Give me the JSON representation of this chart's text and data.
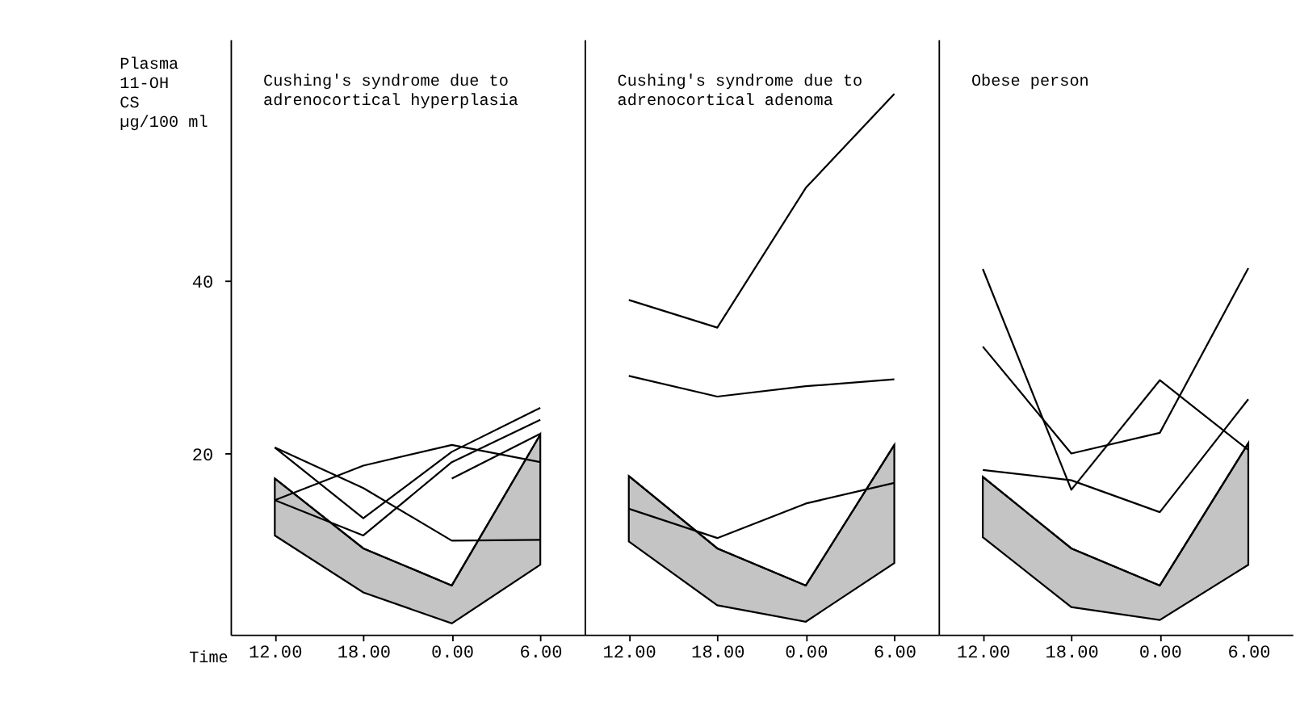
{
  "chart_data": [
    {
      "type": "line",
      "title": "Cushing's syndrome due to\nadrenocortical hyperplasia",
      "xlabel": "Time",
      "ylabel": "Plasma\n11-OH\nCS\nµg/100 ml",
      "categories": [
        "12.00",
        "18.00",
        "0.00",
        "6.00"
      ],
      "ylim": [
        -1,
        68
      ],
      "yticks": [
        20,
        40
      ],
      "grid": false,
      "line_style": "solid",
      "marker": "none",
      "series": [
        {
          "color": "#000000",
          "values": [
            17.1,
            9,
            4.7,
            22.2
          ],
          "lower": [
            10.5,
            3.9,
            0.3,
            7.1
          ],
          "upper": [
            17.1,
            9,
            4.7,
            22.2
          ]
        },
        {
          "color": "#000000",
          "values": [
            20.7,
            16,
            9.9,
            10
          ]
        },
        {
          "color": "#000000",
          "values": [
            20.7,
            12.5,
            20.2,
            25.3
          ]
        },
        {
          "color": "#000000",
          "values": [
            14.6,
            18.6,
            21,
            19
          ]
        },
        {
          "color": "#000000",
          "values": [
            14.6,
            10.5,
            19,
            23.9
          ]
        },
        {
          "color": "#000000",
          "values": [
            null,
            null,
            17.1,
            22.3
          ]
        }
      ]
    },
    {
      "type": "line",
      "title": "Cushing's syndrome due to\nadrenocortical adenoma",
      "categories": [
        "12.00",
        "18.00",
        "0.00",
        "6.00"
      ],
      "ylim": [
        -1,
        68
      ],
      "tick_labels": "x",
      "grid": false,
      "line_style": "solid",
      "marker": "none",
      "series": [
        {
          "color": "#000000",
          "values": [
            17.4,
            9,
            4.7,
            21
          ],
          "lower": [
            9.8,
            2.4,
            0.5,
            7.3
          ],
          "upper": [
            17.4,
            9,
            4.7,
            21
          ]
        },
        {
          "color": "#000000",
          "values": [
            37.8,
            34.6,
            50.8,
            61.7
          ]
        },
        {
          "color": "#000000",
          "values": [
            29,
            26.6,
            27.8,
            28.6
          ]
        },
        {
          "color": "#000000",
          "values": [
            13.6,
            10.2,
            14.2,
            16.6
          ]
        }
      ]
    },
    {
      "type": "line",
      "title": "Obese  person",
      "categories": [
        "12.00",
        "18.00",
        "0.00",
        "6.00"
      ],
      "ylim": [
        -1,
        68
      ],
      "tick_labels": "x",
      "grid": false,
      "line_style": "solid",
      "marker": "none",
      "series": [
        {
          "color": "#000000",
          "values": [
            17.3,
            9,
            4.7,
            21.2
          ],
          "lower": [
            10.3,
            2.2,
            0.7,
            7.1
          ],
          "upper": [
            17.3,
            9,
            4.7,
            21.2
          ]
        },
        {
          "color": "#000000",
          "values": [
            41.4,
            15.8,
            28.5,
            20.4
          ]
        },
        {
          "color": "#000000",
          "values": [
            32.4,
            20,
            22.4,
            41.5
          ]
        },
        {
          "color": "#000000",
          "values": [
            18.1,
            16.9,
            13.2,
            26.3
          ]
        }
      ]
    }
  ]
}
